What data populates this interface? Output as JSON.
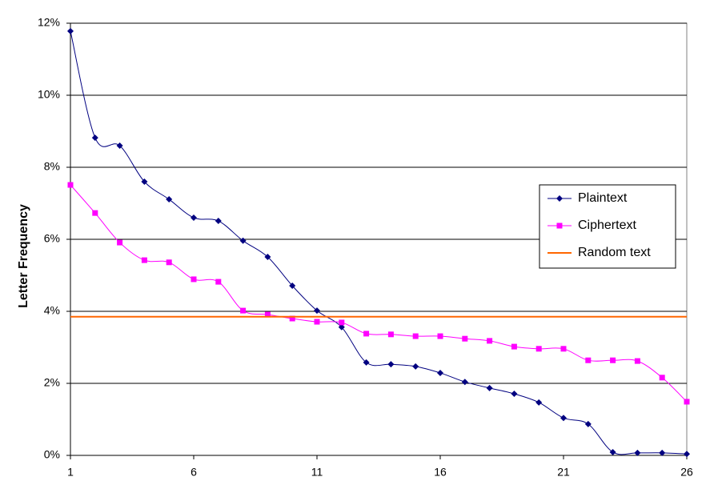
{
  "chart_data": {
    "type": "line",
    "y_label": "Letter Frequency",
    "x": [
      1,
      2,
      3,
      4,
      5,
      6,
      7,
      8,
      9,
      10,
      11,
      12,
      13,
      14,
      15,
      16,
      17,
      18,
      19,
      20,
      21,
      22,
      23,
      24,
      25,
      26
    ],
    "xlim": [
      1,
      26
    ],
    "xticks": [
      1,
      6,
      11,
      16,
      21,
      26
    ],
    "ylim": [
      0,
      12
    ],
    "yticks": [
      {
        "value": 0,
        "label": "0%"
      },
      {
        "value": 2,
        "label": "2%"
      },
      {
        "value": 4,
        "label": "4%"
      },
      {
        "value": 6,
        "label": "6%"
      },
      {
        "value": 8,
        "label": "8%"
      },
      {
        "value": 10,
        "label": "10%"
      },
      {
        "value": 12,
        "label": "12%"
      }
    ],
    "grid": true,
    "smooth": true,
    "legend": "right",
    "series": [
      {
        "name": "Plaintext",
        "color": "#000080",
        "marker": "diamond",
        "values": [
          11.78,
          8.82,
          8.6,
          7.6,
          7.11,
          6.6,
          6.51,
          5.96,
          5.51,
          4.71,
          4.02,
          3.56,
          2.58,
          2.53,
          2.47,
          2.29,
          2.04,
          1.87,
          1.71,
          1.47,
          1.04,
          0.87,
          0.09,
          0.07,
          0.07,
          0.04
        ]
      },
      {
        "name": "Ciphertext",
        "color": "#ff00ff",
        "marker": "square",
        "values": [
          7.51,
          6.73,
          5.91,
          5.42,
          5.36,
          4.89,
          4.82,
          4.02,
          3.91,
          3.8,
          3.71,
          3.69,
          3.38,
          3.36,
          3.31,
          3.31,
          3.24,
          3.18,
          3.02,
          2.96,
          2.96,
          2.64,
          2.64,
          2.62,
          2.16,
          1.49
        ]
      },
      {
        "name": "Random text",
        "color": "#ff6600",
        "marker": "none",
        "values": [
          3.85,
          3.85,
          3.85,
          3.85,
          3.85,
          3.85,
          3.85,
          3.85,
          3.85,
          3.85,
          3.85,
          3.85,
          3.85,
          3.85,
          3.85,
          3.85,
          3.85,
          3.85,
          3.85,
          3.85,
          3.85,
          3.85,
          3.85,
          3.85,
          3.85,
          3.85
        ]
      }
    ]
  }
}
